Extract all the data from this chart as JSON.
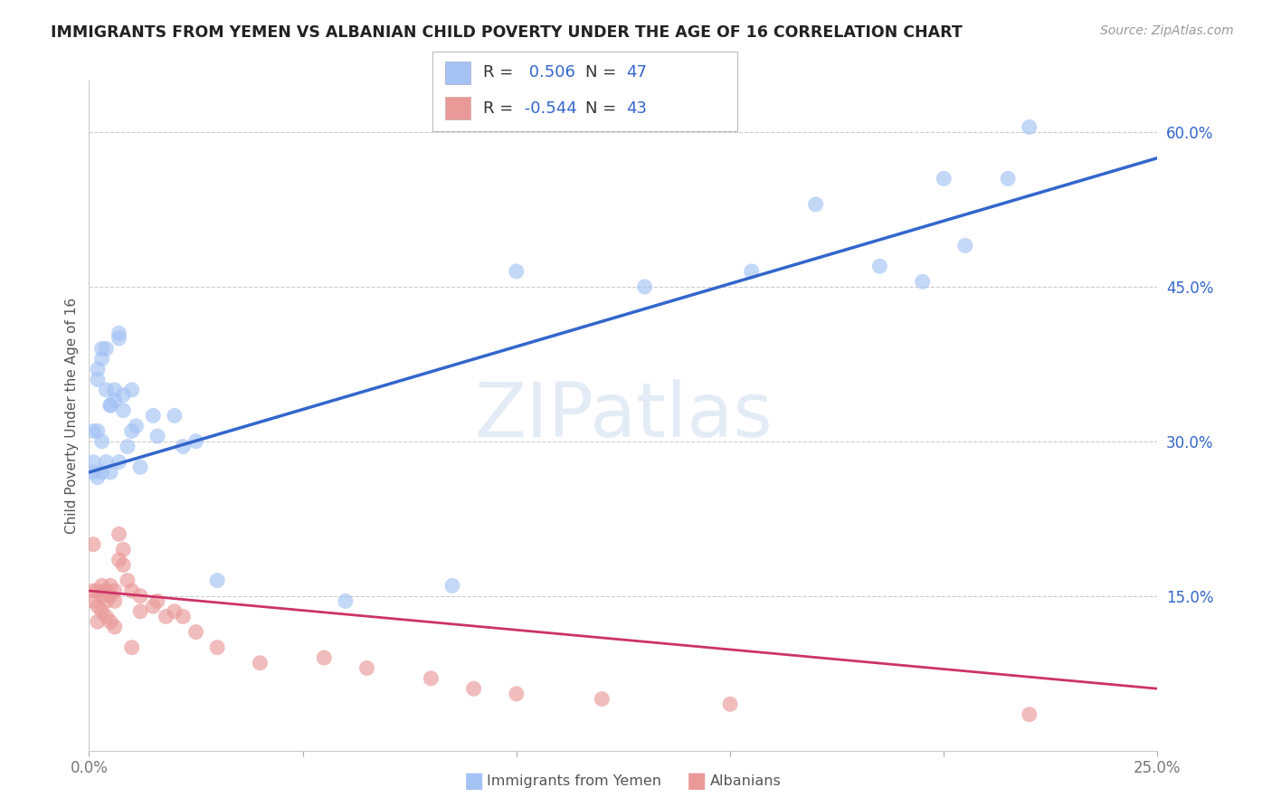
{
  "title": "IMMIGRANTS FROM YEMEN VS ALBANIAN CHILD POVERTY UNDER THE AGE OF 16 CORRELATION CHART",
  "source": "Source: ZipAtlas.com",
  "ylabel": "Child Poverty Under the Age of 16",
  "x_min": 0.0,
  "x_max": 0.25,
  "y_min": 0.0,
  "y_max": 0.65,
  "x_ticks": [
    0.0,
    0.05,
    0.1,
    0.15,
    0.2,
    0.25
  ],
  "x_tick_labels": [
    "0.0%",
    "",
    "",
    "",
    "",
    "25.0%"
  ],
  "y_ticks": [
    0.0,
    0.15,
    0.3,
    0.45,
    0.6
  ],
  "y_tick_labels": [
    "",
    "15.0%",
    "30.0%",
    "45.0%",
    "60.0%"
  ],
  "blue_R": "0.506",
  "blue_N": "47",
  "pink_R": "-0.544",
  "pink_N": "43",
  "legend_label_blue": "Immigrants from Yemen",
  "legend_label_pink": "Albanians",
  "blue_color": "#a4c2f4",
  "pink_color": "#ea9999",
  "blue_line_color": "#3366cc",
  "pink_line_color": "#cc3366",
  "watermark": "ZIPatlas",
  "blue_x": [
    0.001,
    0.001,
    0.001,
    0.002,
    0.002,
    0.002,
    0.002,
    0.003,
    0.003,
    0.003,
    0.003,
    0.004,
    0.004,
    0.004,
    0.005,
    0.005,
    0.005,
    0.006,
    0.006,
    0.007,
    0.007,
    0.007,
    0.008,
    0.008,
    0.009,
    0.01,
    0.01,
    0.011,
    0.012,
    0.015,
    0.016,
    0.02,
    0.022,
    0.025,
    0.03,
    0.06,
    0.085,
    0.1,
    0.13,
    0.155,
    0.17,
    0.185,
    0.195,
    0.2,
    0.205,
    0.215,
    0.22
  ],
  "blue_y": [
    0.27,
    0.28,
    0.31,
    0.36,
    0.37,
    0.31,
    0.265,
    0.39,
    0.38,
    0.27,
    0.3,
    0.39,
    0.35,
    0.28,
    0.335,
    0.335,
    0.27,
    0.35,
    0.34,
    0.405,
    0.4,
    0.28,
    0.345,
    0.33,
    0.295,
    0.35,
    0.31,
    0.315,
    0.275,
    0.325,
    0.305,
    0.325,
    0.295,
    0.3,
    0.165,
    0.145,
    0.16,
    0.465,
    0.45,
    0.465,
    0.53,
    0.47,
    0.455,
    0.555,
    0.49,
    0.555,
    0.605
  ],
  "pink_x": [
    0.001,
    0.001,
    0.001,
    0.002,
    0.002,
    0.002,
    0.003,
    0.003,
    0.003,
    0.004,
    0.004,
    0.004,
    0.005,
    0.005,
    0.005,
    0.006,
    0.006,
    0.006,
    0.007,
    0.007,
    0.008,
    0.008,
    0.009,
    0.01,
    0.01,
    0.012,
    0.012,
    0.015,
    0.016,
    0.018,
    0.02,
    0.022,
    0.025,
    0.03,
    0.04,
    0.055,
    0.065,
    0.08,
    0.09,
    0.1,
    0.12,
    0.15,
    0.22
  ],
  "pink_y": [
    0.155,
    0.145,
    0.2,
    0.155,
    0.14,
    0.125,
    0.16,
    0.15,
    0.135,
    0.155,
    0.145,
    0.13,
    0.16,
    0.15,
    0.125,
    0.155,
    0.145,
    0.12,
    0.185,
    0.21,
    0.18,
    0.195,
    0.165,
    0.155,
    0.1,
    0.15,
    0.135,
    0.14,
    0.145,
    0.13,
    0.135,
    0.13,
    0.115,
    0.1,
    0.085,
    0.09,
    0.08,
    0.07,
    0.06,
    0.055,
    0.05,
    0.045,
    0.035
  ],
  "blue_line_y0": 0.27,
  "blue_line_y1": 0.575,
  "pink_line_y0": 0.155,
  "pink_line_y1": 0.06
}
